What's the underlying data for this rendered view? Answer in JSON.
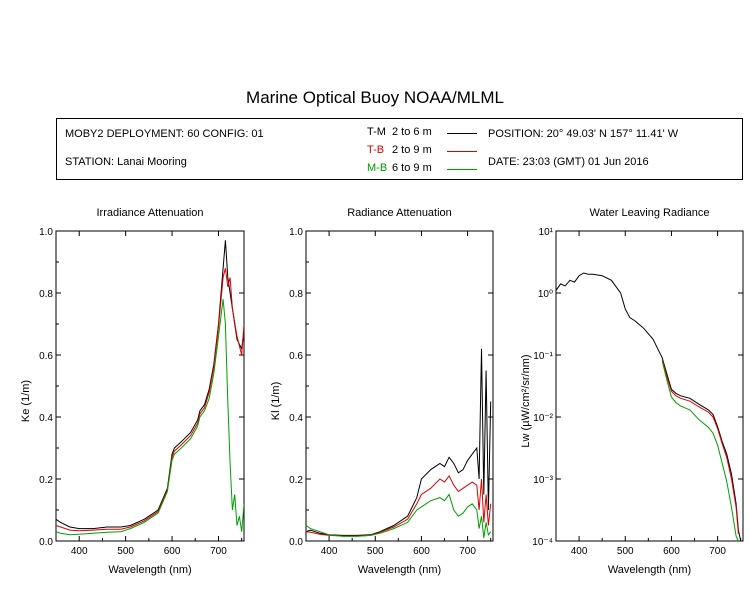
{
  "title": "Marine Optical Buoy NOAA/MLML",
  "info": {
    "deployment": "MOBY2 DEPLOYMENT: 60 CONFIG: 01",
    "station": "STATION: Lanai Mooring",
    "position": "POSITION: 20° 49.03' N   157° 11.41' W",
    "date": "DATE: 23:03 (GMT) 01 Jun 2016",
    "legend": [
      {
        "code": "T-M",
        "range": "2 to 6  m",
        "color": "#000000"
      },
      {
        "code": "T-B",
        "range": "2 to 9  m",
        "color": "#e00000"
      },
      {
        "code": "M-B",
        "range": "6 to 9  m",
        "color": "#00a000"
      }
    ]
  },
  "chart_data": [
    {
      "type": "line",
      "title": "Irradiance Attenuation",
      "xlabel": "Wavelength (nm)",
      "ylabel": "Ke  (1/m)",
      "xlim": [
        350,
        755
      ],
      "ylim": [
        0,
        1
      ],
      "xticks": [
        400,
        500,
        600,
        700
      ],
      "xtick_labels": [
        "400",
        "500",
        "600",
        "700"
      ],
      "yticks": [
        0,
        0.2,
        0.4,
        0.6,
        0.8,
        1.0
      ],
      "ytick_labels": [
        "0.0",
        "0.2",
        "0.4",
        "0.6",
        "0.8",
        "1.0"
      ],
      "series": [
        {
          "name": "T-M",
          "color": "#000000",
          "x": [
            350,
            360,
            380,
            400,
            430,
            460,
            490,
            510,
            540,
            570,
            590,
            600,
            605,
            620,
            640,
            655,
            660,
            670,
            680,
            690,
            700,
            710,
            715,
            720,
            725,
            730,
            740,
            750,
            755
          ],
          "y": [
            0.07,
            0.06,
            0.045,
            0.04,
            0.04,
            0.045,
            0.045,
            0.05,
            0.07,
            0.1,
            0.17,
            0.28,
            0.3,
            0.32,
            0.35,
            0.39,
            0.42,
            0.44,
            0.49,
            0.57,
            0.7,
            0.88,
            0.97,
            0.85,
            0.8,
            0.75,
            0.65,
            0.62,
            0.68
          ]
        },
        {
          "name": "T-B",
          "color": "#e00000",
          "x": [
            350,
            360,
            380,
            400,
            430,
            460,
            490,
            510,
            540,
            570,
            590,
            600,
            605,
            620,
            640,
            655,
            660,
            670,
            680,
            690,
            700,
            710,
            715,
            720,
            725,
            730,
            740,
            750,
            755
          ],
          "y": [
            0.05,
            0.045,
            0.035,
            0.033,
            0.035,
            0.038,
            0.038,
            0.045,
            0.065,
            0.095,
            0.165,
            0.27,
            0.29,
            0.31,
            0.34,
            0.38,
            0.41,
            0.43,
            0.48,
            0.56,
            0.69,
            0.85,
            0.88,
            0.82,
            0.85,
            0.75,
            0.66,
            0.6,
            0.7
          ]
        },
        {
          "name": "M-B",
          "color": "#00a000",
          "x": [
            350,
            360,
            380,
            400,
            430,
            460,
            490,
            510,
            540,
            570,
            590,
            600,
            605,
            620,
            640,
            655,
            660,
            670,
            680,
            690,
            700,
            710,
            715,
            720,
            725,
            730,
            735,
            740,
            745,
            750,
            755
          ],
          "y": [
            0.03,
            0.025,
            0.02,
            0.022,
            0.025,
            0.028,
            0.03,
            0.04,
            0.06,
            0.09,
            0.16,
            0.26,
            0.28,
            0.3,
            0.33,
            0.37,
            0.4,
            0.42,
            0.46,
            0.54,
            0.66,
            0.78,
            0.7,
            0.45,
            0.25,
            0.1,
            0.15,
            0.05,
            0.08,
            0.03,
            0.12
          ]
        }
      ]
    },
    {
      "type": "line",
      "title": "Radiance Attenuation",
      "xlabel": "Wavelength (nm)",
      "ylabel": "Kl  (1/m)",
      "xlim": [
        350,
        755
      ],
      "ylim": [
        0,
        1
      ],
      "xticks": [
        400,
        500,
        600,
        700
      ],
      "xtick_labels": [
        "400",
        "500",
        "600",
        "700"
      ],
      "yticks": [
        0,
        0.2,
        0.4,
        0.6,
        0.8,
        1.0
      ],
      "ytick_labels": [
        "0.0",
        "0.2",
        "0.4",
        "0.6",
        "0.8",
        "1.0"
      ],
      "series": [
        {
          "name": "T-M",
          "color": "#000000",
          "x": [
            350,
            360,
            380,
            400,
            430,
            460,
            490,
            510,
            540,
            570,
            590,
            600,
            620,
            640,
            650,
            660,
            670,
            680,
            690,
            700,
            710,
            720,
            725,
            730,
            735,
            740,
            745,
            750
          ],
          "y": [
            0.03,
            0.035,
            0.025,
            0.02,
            0.018,
            0.018,
            0.02,
            0.03,
            0.05,
            0.08,
            0.14,
            0.2,
            0.23,
            0.25,
            0.24,
            0.27,
            0.25,
            0.22,
            0.23,
            0.26,
            0.28,
            0.3,
            0.2,
            0.62,
            0.15,
            0.55,
            0.1,
            0.45
          ]
        },
        {
          "name": "T-B",
          "color": "#e00000",
          "x": [
            350,
            360,
            380,
            400,
            430,
            460,
            490,
            510,
            540,
            570,
            590,
            600,
            620,
            640,
            650,
            660,
            670,
            680,
            690,
            700,
            710,
            720,
            725,
            730,
            735,
            740,
            745,
            750
          ],
          "y": [
            0.03,
            0.028,
            0.022,
            0.018,
            0.016,
            0.016,
            0.018,
            0.028,
            0.045,
            0.07,
            0.12,
            0.15,
            0.17,
            0.2,
            0.19,
            0.21,
            0.18,
            0.16,
            0.17,
            0.18,
            0.19,
            0.18,
            0.1,
            0.2,
            0.06,
            0.15,
            0.05,
            0.12
          ]
        },
        {
          "name": "M-B",
          "color": "#00a000",
          "x": [
            350,
            360,
            380,
            400,
            430,
            460,
            490,
            510,
            540,
            570,
            590,
            600,
            620,
            640,
            650,
            660,
            670,
            680,
            690,
            700,
            710,
            720,
            725,
            730,
            735,
            740,
            745,
            750
          ],
          "y": [
            0.05,
            0.04,
            0.03,
            0.02,
            0.015,
            0.015,
            0.018,
            0.025,
            0.04,
            0.06,
            0.1,
            0.11,
            0.13,
            0.14,
            0.13,
            0.15,
            0.1,
            0.08,
            0.09,
            0.11,
            0.12,
            0.1,
            0.04,
            0.08,
            0.01,
            0.06,
            0.02,
            0.03
          ]
        }
      ]
    },
    {
      "type": "line",
      "title": "Water Leaving Radiance",
      "xlabel": "Wavelength (nm)",
      "ylabel": "Lw  (µW/cm²/sr/nm)",
      "xlim": [
        350,
        755
      ],
      "ylim": [
        0.0001,
        10
      ],
      "log_y": true,
      "xticks": [
        400,
        500,
        600,
        700
      ],
      "xtick_labels": [
        "400",
        "500",
        "600",
        "700"
      ],
      "yticks": [
        0.0001,
        0.001,
        0.01,
        0.1,
        1,
        10
      ],
      "ytick_labels": [
        "10⁻⁴",
        "10⁻³",
        "10⁻²",
        "10⁻¹",
        "10⁰",
        "10¹"
      ],
      "series": [
        {
          "name": "T-M",
          "color": "#000000",
          "x": [
            350,
            360,
            370,
            380,
            390,
            400,
            410,
            420,
            430,
            450,
            470,
            490,
            500,
            510,
            520,
            540,
            560,
            580,
            590,
            600,
            610,
            620,
            640,
            660,
            680,
            690,
            700,
            710,
            720,
            730,
            740,
            745,
            750
          ],
          "y": [
            1.1,
            1.4,
            1.3,
            1.6,
            1.5,
            1.9,
            2.1,
            2.0,
            2.0,
            1.9,
            1.6,
            1.0,
            0.55,
            0.4,
            0.36,
            0.27,
            0.18,
            0.09,
            0.05,
            0.028,
            0.024,
            0.022,
            0.02,
            0.016,
            0.013,
            0.011,
            0.007,
            0.004,
            0.0025,
            0.0012,
            0.0004,
            0.00015,
            0.0001
          ]
        },
        {
          "name": "T-B",
          "color": "#e00000",
          "x": [
            580,
            590,
            600,
            610,
            620,
            640,
            660,
            680,
            690,
            700,
            710,
            720,
            730,
            740,
            745
          ],
          "y": [
            0.085,
            0.045,
            0.026,
            0.022,
            0.02,
            0.018,
            0.0145,
            0.012,
            0.01,
            0.0065,
            0.0037,
            0.0022,
            0.001,
            0.00035,
            0.00013
          ]
        },
        {
          "name": "M-B",
          "color": "#00a000",
          "x": [
            580,
            590,
            600,
            610,
            620,
            640,
            660,
            680,
            690,
            700,
            710,
            720,
            730,
            740,
            745
          ],
          "y": [
            0.08,
            0.04,
            0.021,
            0.017,
            0.015,
            0.013,
            0.009,
            0.0068,
            0.0055,
            0.0035,
            0.0018,
            0.0009,
            0.00035,
            0.00012,
            0.0001
          ]
        }
      ]
    }
  ]
}
